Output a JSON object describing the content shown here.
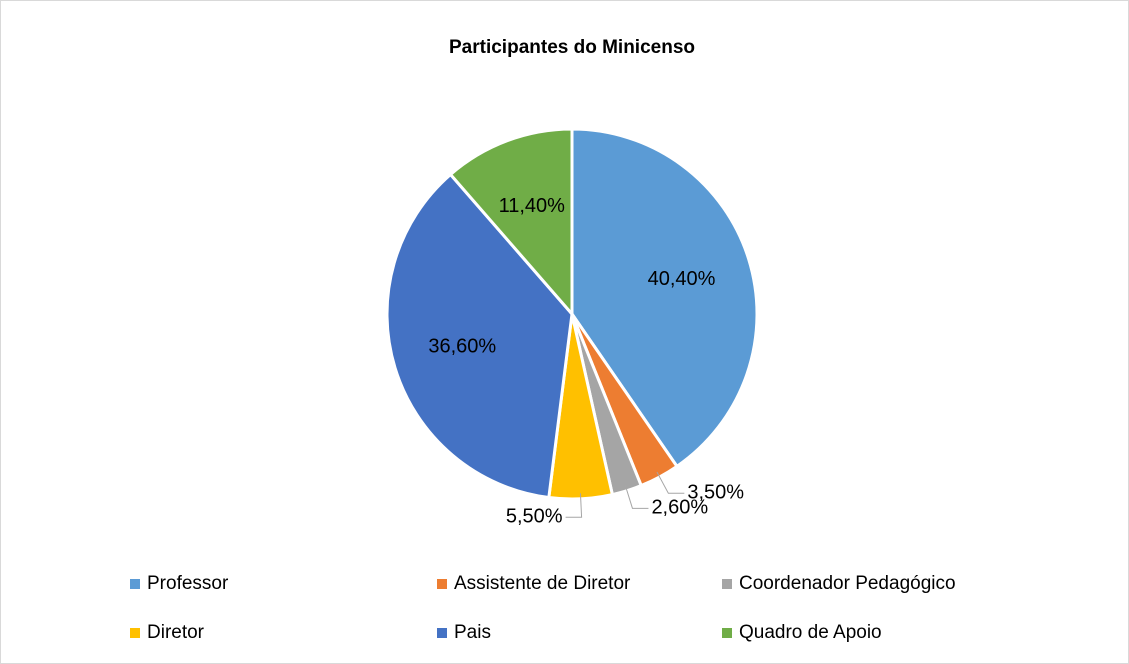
{
  "chart_data": {
    "type": "pie",
    "title": "Participantes do Minicenso",
    "categories": [
      "Professor",
      "Assistente de Diretor",
      "Coordenador Pedagógico",
      "Diretor",
      "Pais",
      "Quadro de Apoio"
    ],
    "values": [
      40.4,
      3.5,
      2.6,
      5.5,
      36.6,
      11.4
    ],
    "value_labels": [
      "40,40%",
      "3,50%",
      "2,60%",
      "5,50%",
      "36,60%",
      "11,40%"
    ],
    "colors": [
      "#5b9bd5",
      "#ed7d31",
      "#a5a5a5",
      "#ffc000",
      "#4472c4",
      "#70ad47"
    ],
    "legend": "bottom"
  }
}
